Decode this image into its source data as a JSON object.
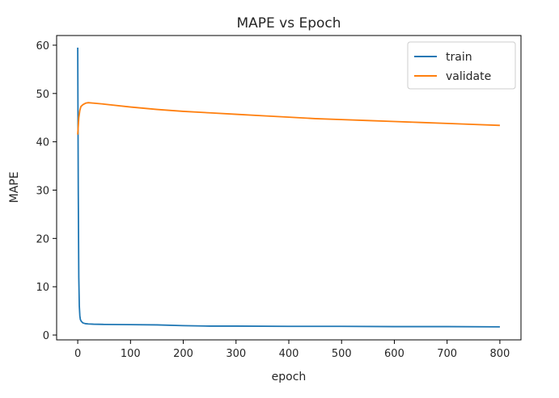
{
  "chart_data": {
    "type": "line",
    "title": "MAPE vs Epoch",
    "xlabel": "epoch",
    "ylabel": "MAPE",
    "xlim": [
      -40,
      840
    ],
    "ylim": [
      -1,
      62
    ],
    "xticks": [
      0,
      100,
      200,
      300,
      400,
      500,
      600,
      700,
      800
    ],
    "yticks": [
      0,
      10,
      20,
      30,
      40,
      50,
      60
    ],
    "grid": false,
    "legend_position": "top-right",
    "series": [
      {
        "name": "train",
        "color": "#1f77b4",
        "x": [
          0,
          1,
          2,
          3,
          4,
          5,
          7,
          10,
          15,
          20,
          30,
          50,
          100,
          150,
          200,
          250,
          300,
          400,
          500,
          600,
          700,
          800
        ],
        "y": [
          59.5,
          30,
          12,
          6,
          4,
          3.2,
          2.8,
          2.5,
          2.35,
          2.3,
          2.25,
          2.2,
          2.15,
          2.1,
          1.95,
          1.85,
          1.85,
          1.8,
          1.8,
          1.75,
          1.75,
          1.7
        ]
      },
      {
        "name": "validate",
        "color": "#ff7f0e",
        "x": [
          0,
          2,
          4,
          6,
          10,
          15,
          20,
          30,
          50,
          100,
          150,
          200,
          250,
          300,
          350,
          400,
          450,
          500,
          550,
          600,
          650,
          700,
          750,
          800
        ],
        "y": [
          41.5,
          45,
          46.5,
          47.3,
          47.7,
          48.0,
          48.1,
          48.0,
          47.8,
          47.2,
          46.7,
          46.3,
          46.0,
          45.7,
          45.4,
          45.1,
          44.8,
          44.6,
          44.4,
          44.2,
          44.0,
          43.8,
          43.6,
          43.4
        ]
      }
    ]
  }
}
